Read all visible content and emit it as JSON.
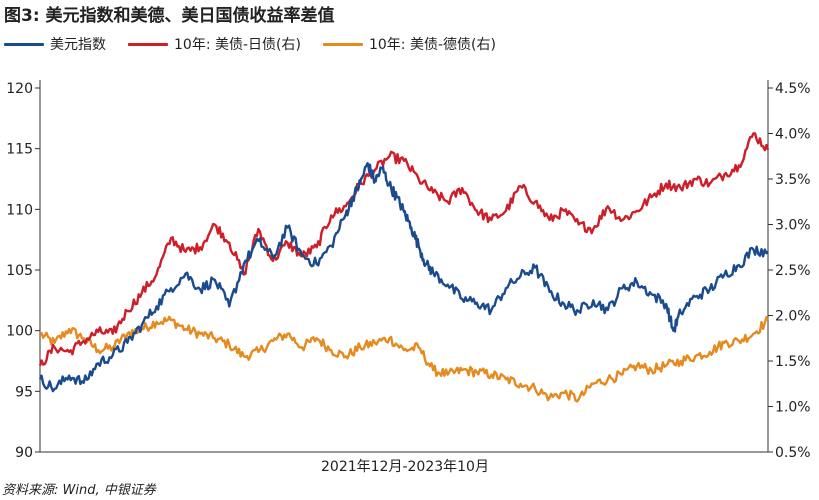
{
  "title": "图3: 美元指数和美德、美日国债收益率差值",
  "source": "资料来源: Wind, 中银证券",
  "chart_data": {
    "type": "line",
    "xlabel": "2021年12月-2023年10月",
    "left_axis": {
      "min": 90,
      "max": 120,
      "ticks": [
        "90",
        "95",
        "100",
        "105",
        "110",
        "115",
        "120"
      ]
    },
    "right_axis": {
      "min": 0.5,
      "max": 4.5,
      "ticks": [
        "0.5%",
        "1.0%",
        "1.5%",
        "2.0%",
        "2.5%",
        "3.0%",
        "3.5%",
        "4.0%",
        "4.5%"
      ]
    },
    "legend_position": "top-left",
    "series": [
      {
        "name": "美元指数",
        "axis": "left",
        "color": "#1b4b8f",
        "points": [
          [
            0,
            96.0
          ],
          [
            0.02,
            95.2
          ],
          [
            0.04,
            96.3
          ],
          [
            0.06,
            95.7
          ],
          [
            0.08,
            97.3
          ],
          [
            0.1,
            98.0
          ],
          [
            0.12,
            99.0
          ],
          [
            0.14,
            100.5
          ],
          [
            0.16,
            102.0
          ],
          [
            0.18,
            103.5
          ],
          [
            0.2,
            104.7
          ],
          [
            0.22,
            103.4
          ],
          [
            0.24,
            104.2
          ],
          [
            0.26,
            102.0
          ],
          [
            0.28,
            105.5
          ],
          [
            0.3,
            107.4
          ],
          [
            0.32,
            106.0
          ],
          [
            0.34,
            108.5
          ],
          [
            0.36,
            106.2
          ],
          [
            0.38,
            105.5
          ],
          [
            0.4,
            107.0
          ],
          [
            0.42,
            109.6
          ],
          [
            0.43,
            111.0
          ],
          [
            0.44,
            112.2
          ],
          [
            0.45,
            113.8
          ],
          [
            0.46,
            112.3
          ],
          [
            0.47,
            113.4
          ],
          [
            0.48,
            112.0
          ],
          [
            0.49,
            111.0
          ],
          [
            0.5,
            109.8
          ],
          [
            0.51,
            108.5
          ],
          [
            0.52,
            107.0
          ],
          [
            0.53,
            105.5
          ],
          [
            0.54,
            104.8
          ],
          [
            0.56,
            103.8
          ],
          [
            0.58,
            102.6
          ],
          [
            0.6,
            102.3
          ],
          [
            0.62,
            101.7
          ],
          [
            0.64,
            103.5
          ],
          [
            0.66,
            104.5
          ],
          [
            0.68,
            105.2
          ],
          [
            0.7,
            103.2
          ],
          [
            0.72,
            102.2
          ],
          [
            0.74,
            101.6
          ],
          [
            0.76,
            102.5
          ],
          [
            0.78,
            101.7
          ],
          [
            0.8,
            103.5
          ],
          [
            0.82,
            104.0
          ],
          [
            0.84,
            103.0
          ],
          [
            0.86,
            102.2
          ],
          [
            0.87,
            100.0
          ],
          [
            0.88,
            101.5
          ],
          [
            0.9,
            102.8
          ],
          [
            0.92,
            103.4
          ],
          [
            0.94,
            104.6
          ],
          [
            0.96,
            105.4
          ],
          [
            0.98,
            106.7
          ],
          [
            1.0,
            106.5
          ]
        ]
      },
      {
        "name": "10年: 美债-日债(右)",
        "axis": "right",
        "color": "#cc1f2a",
        "points": [
          [
            0,
            1.45
          ],
          [
            0.02,
            1.65
          ],
          [
            0.04,
            1.6
          ],
          [
            0.06,
            1.72
          ],
          [
            0.08,
            1.82
          ],
          [
            0.1,
            1.8
          ],
          [
            0.12,
            2.05
          ],
          [
            0.14,
            2.25
          ],
          [
            0.16,
            2.45
          ],
          [
            0.18,
            2.85
          ],
          [
            0.2,
            2.7
          ],
          [
            0.22,
            2.75
          ],
          [
            0.24,
            3.0
          ],
          [
            0.26,
            2.8
          ],
          [
            0.28,
            2.45
          ],
          [
            0.3,
            2.95
          ],
          [
            0.32,
            2.6
          ],
          [
            0.34,
            2.8
          ],
          [
            0.36,
            2.65
          ],
          [
            0.38,
            2.75
          ],
          [
            0.4,
            3.1
          ],
          [
            0.42,
            3.2
          ],
          [
            0.44,
            3.45
          ],
          [
            0.46,
            3.6
          ],
          [
            0.48,
            3.75
          ],
          [
            0.5,
            3.7
          ],
          [
            0.52,
            3.5
          ],
          [
            0.54,
            3.35
          ],
          [
            0.56,
            3.25
          ],
          [
            0.58,
            3.4
          ],
          [
            0.6,
            3.15
          ],
          [
            0.62,
            3.05
          ],
          [
            0.64,
            3.15
          ],
          [
            0.66,
            3.42
          ],
          [
            0.68,
            3.25
          ],
          [
            0.7,
            3.05
          ],
          [
            0.72,
            3.15
          ],
          [
            0.74,
            3.0
          ],
          [
            0.76,
            2.95
          ],
          [
            0.78,
            3.2
          ],
          [
            0.8,
            3.05
          ],
          [
            0.82,
            3.15
          ],
          [
            0.84,
            3.3
          ],
          [
            0.86,
            3.45
          ],
          [
            0.88,
            3.4
          ],
          [
            0.9,
            3.5
          ],
          [
            0.92,
            3.45
          ],
          [
            0.94,
            3.55
          ],
          [
            0.96,
            3.65
          ],
          [
            0.98,
            4.0
          ],
          [
            1.0,
            3.82
          ]
        ]
      },
      {
        "name": "10年: 美债-德债(右)",
        "axis": "right",
        "color": "#e58a1f",
        "points": [
          [
            0,
            1.8
          ],
          [
            0.02,
            1.7
          ],
          [
            0.04,
            1.85
          ],
          [
            0.06,
            1.75
          ],
          [
            0.08,
            1.62
          ],
          [
            0.1,
            1.65
          ],
          [
            0.12,
            1.8
          ],
          [
            0.14,
            1.85
          ],
          [
            0.16,
            1.93
          ],
          [
            0.18,
            1.95
          ],
          [
            0.2,
            1.85
          ],
          [
            0.22,
            1.8
          ],
          [
            0.24,
            1.75
          ],
          [
            0.26,
            1.68
          ],
          [
            0.28,
            1.55
          ],
          [
            0.3,
            1.6
          ],
          [
            0.32,
            1.72
          ],
          [
            0.34,
            1.8
          ],
          [
            0.36,
            1.65
          ],
          [
            0.38,
            1.75
          ],
          [
            0.4,
            1.62
          ],
          [
            0.42,
            1.55
          ],
          [
            0.44,
            1.65
          ],
          [
            0.46,
            1.7
          ],
          [
            0.48,
            1.75
          ],
          [
            0.5,
            1.62
          ],
          [
            0.52,
            1.65
          ],
          [
            0.54,
            1.4
          ],
          [
            0.56,
            1.35
          ],
          [
            0.58,
            1.4
          ],
          [
            0.6,
            1.38
          ],
          [
            0.62,
            1.35
          ],
          [
            0.64,
            1.3
          ],
          [
            0.66,
            1.25
          ],
          [
            0.68,
            1.2
          ],
          [
            0.7,
            1.1
          ],
          [
            0.72,
            1.15
          ],
          [
            0.74,
            1.08
          ],
          [
            0.76,
            1.25
          ],
          [
            0.78,
            1.3
          ],
          [
            0.8,
            1.35
          ],
          [
            0.82,
            1.45
          ],
          [
            0.84,
            1.4
          ],
          [
            0.86,
            1.45
          ],
          [
            0.88,
            1.5
          ],
          [
            0.9,
            1.55
          ],
          [
            0.92,
            1.6
          ],
          [
            0.94,
            1.7
          ],
          [
            0.96,
            1.72
          ],
          [
            0.98,
            1.8
          ],
          [
            1.0,
            1.95
          ]
        ]
      }
    ]
  }
}
